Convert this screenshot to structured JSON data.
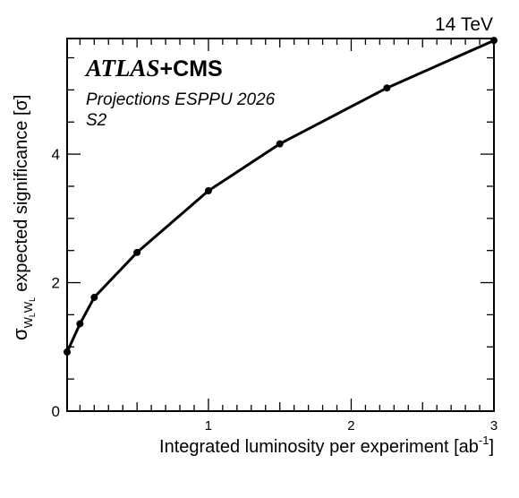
{
  "chart_data": {
    "type": "line",
    "energy_label": "14 TeV",
    "experiment_label": {
      "atlas": "ATLAS",
      "plus": "+",
      "cms": "CMS"
    },
    "subtitle_lines": [
      "Projections ESPPU 2026",
      "S2"
    ],
    "xlabel": "Integrated luminosity per experiment [ab",
    "xlabel_superscript": "-1",
    "xlabel_close": "]",
    "ylabel": {
      "symbol": "σ",
      "subscript": "W",
      "subsubscript": "L",
      "subscript2": "W",
      "subsubscript2": "L",
      "text": "expected significance [σ]"
    },
    "xlim": [
      0.01,
      3.0
    ],
    "ylim": [
      0,
      5.8
    ],
    "x_ticks": [
      1,
      2,
      3
    ],
    "y_ticks": [
      0,
      2,
      4
    ],
    "grid": false,
    "series": [
      {
        "x": [
          0.01,
          0.1,
          0.2,
          0.5,
          1.0,
          1.5,
          2.25,
          3.0
        ],
        "y": [
          0.92,
          1.36,
          1.77,
          2.47,
          3.43,
          4.16,
          5.03,
          5.77
        ]
      }
    ]
  }
}
